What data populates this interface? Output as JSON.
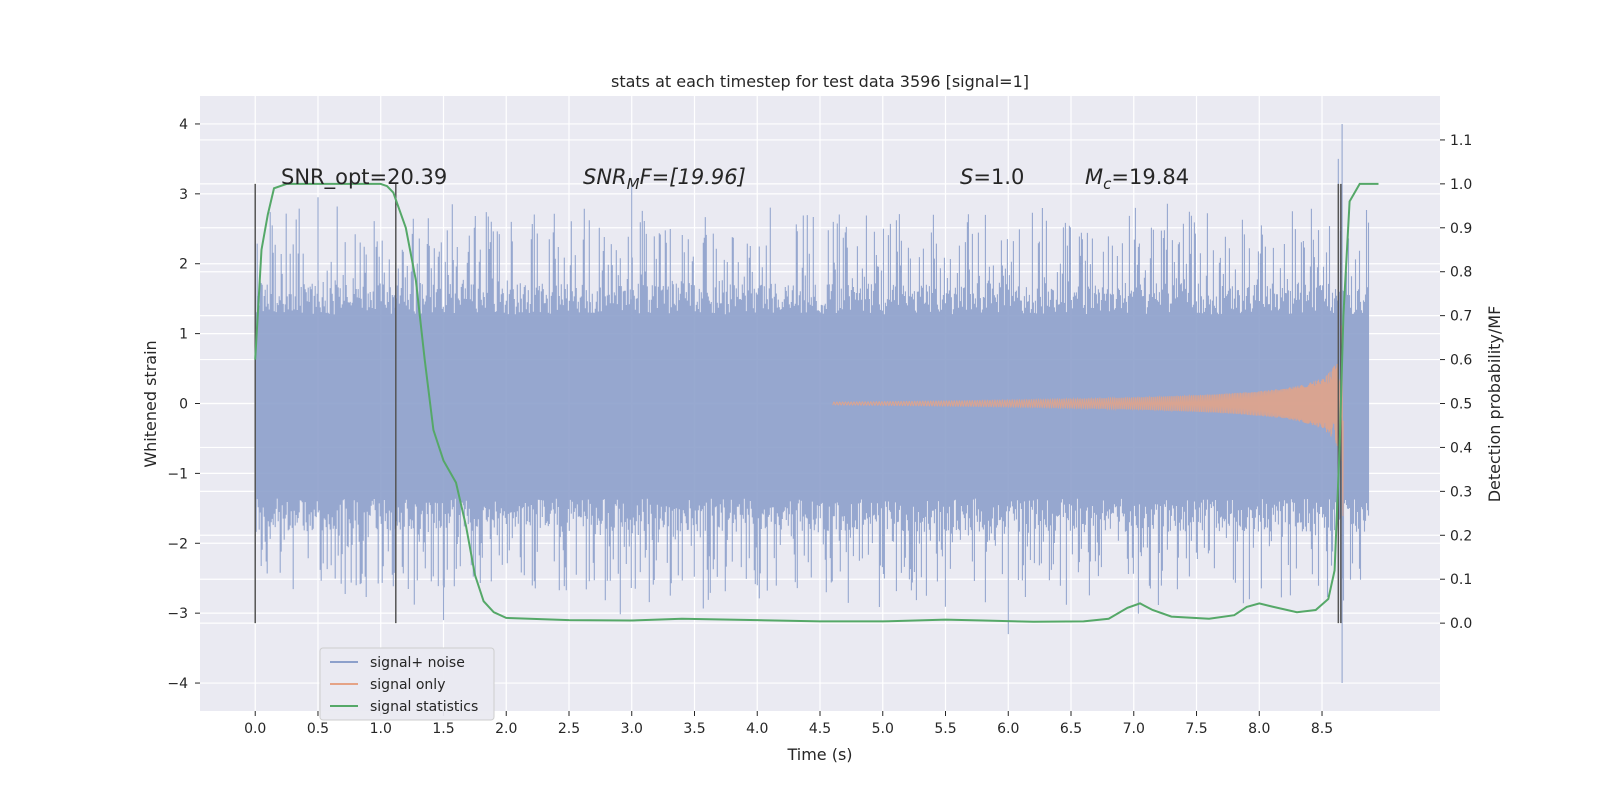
{
  "chart_data": {
    "type": "line",
    "title": "stats at each timestep for test data 3596 [signal=1]",
    "xlabel": "Time (s)",
    "ylabel_left": "Whitened strain",
    "ylabel_right": "Detection probability/MF",
    "xlim": [
      -0.44,
      9.44
    ],
    "ylim_left": [
      -4.4,
      4.4
    ],
    "ylim_right": [
      -0.2,
      1.2
    ],
    "x_ticks": [
      "0.0",
      "0.5",
      "1.0",
      "1.5",
      "2.0",
      "2.5",
      "3.0",
      "3.5",
      "4.0",
      "4.5",
      "5.0",
      "5.5",
      "6.0",
      "6.5",
      "7.0",
      "7.5",
      "8.0",
      "8.5"
    ],
    "y_ticks_left": [
      "4",
      "3",
      "2",
      "1",
      "0",
      "−1",
      "−2",
      "−3",
      "−4"
    ],
    "y_ticks_right": [
      "1.1",
      "1.0",
      "0.9",
      "0.8",
      "0.7",
      "0.6",
      "0.5",
      "0.4",
      "0.3",
      "0.2",
      "0.1",
      "0.0"
    ],
    "grid": true,
    "legend_position": "lower-left",
    "annotations": {
      "snr_opt": "SNR_opt=20.39",
      "snr_mf_main": "SNR",
      "snr_mf_sub": "M",
      "snr_mf_rest": "F=[19.96]",
      "s_main": "S",
      "s_rest": "=1.0",
      "mc_main": "M",
      "mc_sub": "c",
      "mc_rest": "=19.84"
    },
    "vertical_markers": [
      0.0,
      1.12,
      8.63,
      8.65
    ],
    "series": [
      {
        "name": "signal+ noise",
        "color": "#8da0cb",
        "description_range": [
          0.0,
          8.87
        ],
        "approx_amplitude_band": [
          -1.6,
          1.5
        ],
        "peaks": [
          [
            0.5,
            2.95
          ],
          [
            3.0,
            3.2
          ],
          [
            8.63,
            3.5
          ],
          [
            8.66,
            4.0
          ],
          [
            6.0,
            -3.3
          ],
          [
            8.66,
            -4.0
          ],
          [
            1.5,
            -3.1
          ]
        ]
      },
      {
        "name": "signal only",
        "color": "#e5a386",
        "chirp_start": 4.6,
        "chirp_end": 8.67,
        "peak_amplitude": 3.4
      },
      {
        "name": "signal statistics",
        "color": "#55a868",
        "points": [
          [
            0.0,
            0.6
          ],
          [
            0.05,
            0.85
          ],
          [
            0.1,
            0.93
          ],
          [
            0.15,
            0.99
          ],
          [
            0.25,
            1.0
          ],
          [
            0.5,
            1.0
          ],
          [
            0.8,
            1.0
          ],
          [
            1.0,
            1.0
          ],
          [
            1.05,
            0.995
          ],
          [
            1.1,
            0.98
          ],
          [
            1.2,
            0.9
          ],
          [
            1.28,
            0.78
          ],
          [
            1.35,
            0.6
          ],
          [
            1.42,
            0.44
          ],
          [
            1.5,
            0.37
          ],
          [
            1.6,
            0.32
          ],
          [
            1.68,
            0.22
          ],
          [
            1.75,
            0.11
          ],
          [
            1.82,
            0.05
          ],
          [
            1.9,
            0.025
          ],
          [
            2.0,
            0.012
          ],
          [
            2.5,
            0.007
          ],
          [
            3.0,
            0.006
          ],
          [
            3.4,
            0.01
          ],
          [
            4.0,
            0.007
          ],
          [
            4.5,
            0.004
          ],
          [
            5.0,
            0.004
          ],
          [
            5.5,
            0.008
          ],
          [
            5.8,
            0.006
          ],
          [
            6.2,
            0.003
          ],
          [
            6.6,
            0.004
          ],
          [
            6.8,
            0.01
          ],
          [
            6.95,
            0.035
          ],
          [
            7.05,
            0.045
          ],
          [
            7.15,
            0.03
          ],
          [
            7.3,
            0.015
          ],
          [
            7.6,
            0.01
          ],
          [
            7.8,
            0.018
          ],
          [
            7.9,
            0.037
          ],
          [
            8.0,
            0.045
          ],
          [
            8.1,
            0.038
          ],
          [
            8.3,
            0.025
          ],
          [
            8.45,
            0.03
          ],
          [
            8.55,
            0.055
          ],
          [
            8.6,
            0.12
          ],
          [
            8.64,
            0.4
          ],
          [
            8.67,
            0.7
          ],
          [
            8.72,
            0.96
          ],
          [
            8.8,
            1.0
          ],
          [
            8.95,
            1.0
          ]
        ]
      }
    ]
  }
}
